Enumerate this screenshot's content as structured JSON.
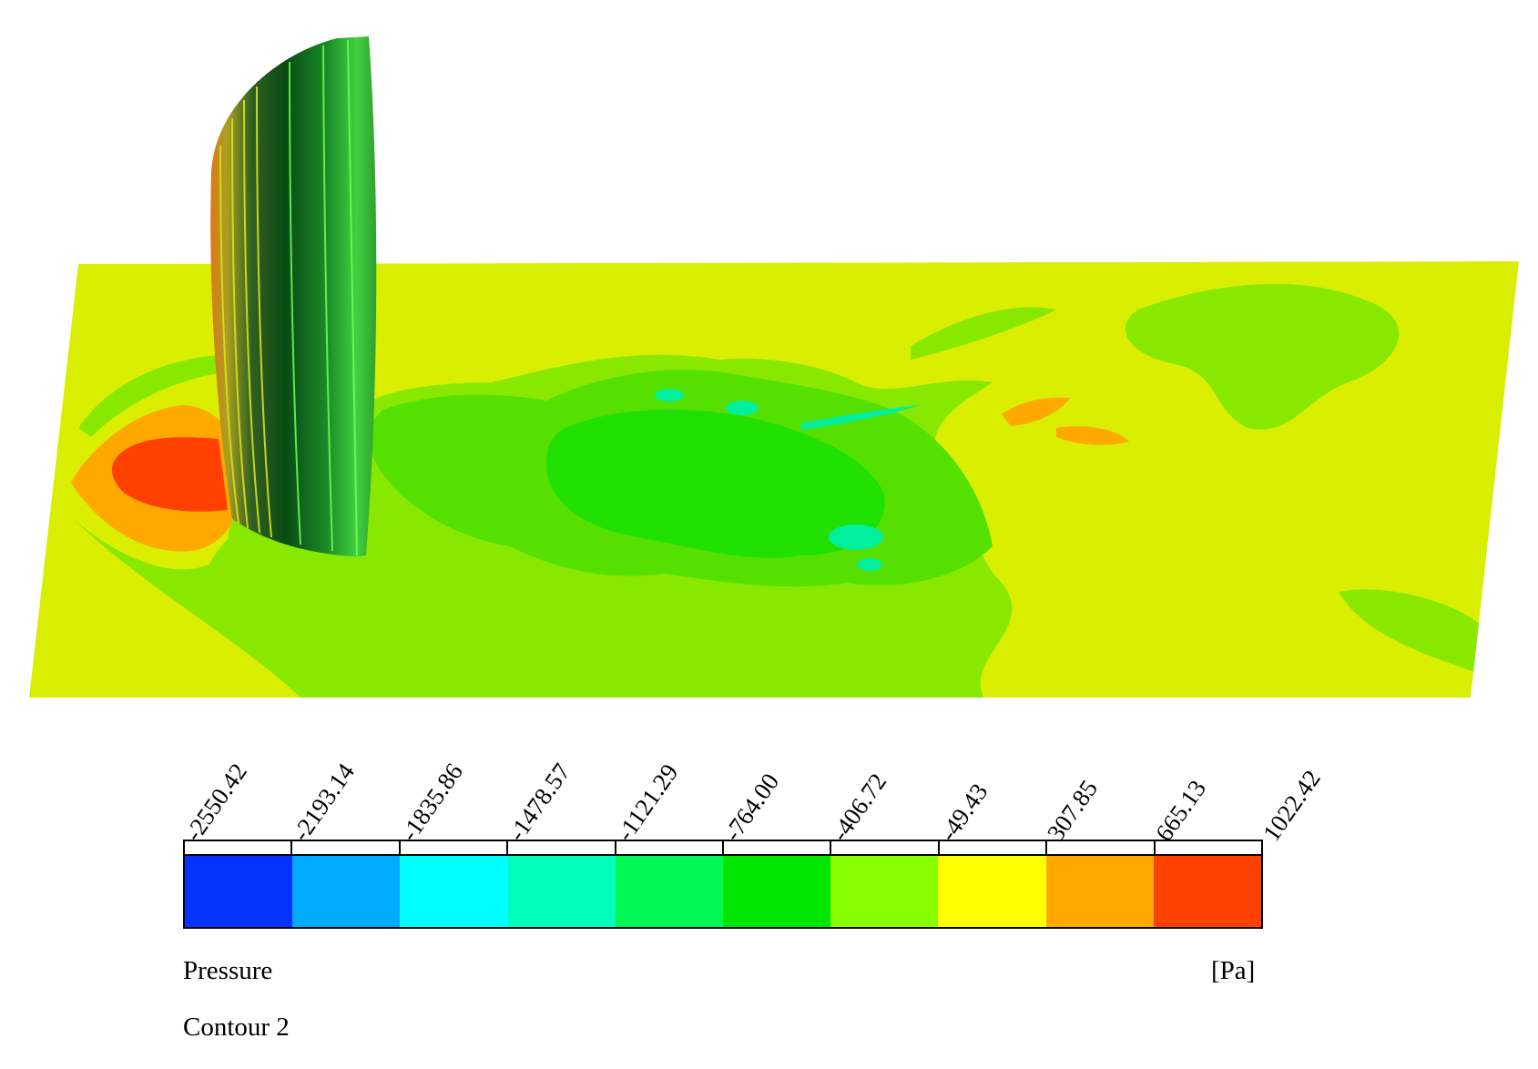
{
  "legend": {
    "variable": "Pressure",
    "unit": "[Pa]",
    "contour_name": "Contour 2",
    "tick_labels": [
      "-2550.42",
      "-2193.14",
      "-1835.86",
      "-1478.57",
      "-1121.29",
      "-764.00",
      "-406.72",
      "-49.43",
      "307.85",
      "665.13",
      "1022.42"
    ],
    "colors": [
      "#0433ff",
      "#00aaff",
      "#00ffff",
      "#00ffbb",
      "#00f855",
      "#00e600",
      "#88ff00",
      "#ffff00",
      "#ffa800",
      "#ff4000"
    ]
  },
  "scene_colors": {
    "plate_base": "#d9ee00",
    "plate_light_green": "#88e800",
    "plate_green": "#55e000",
    "plate_mid_green": "#20e000",
    "high_pressure": "#ff4000",
    "mid_pressure": "#ffa800",
    "low_pressure_cyan": "#00f0a0",
    "body_dark": "#0a4a14",
    "body_light": "#40e040"
  }
}
